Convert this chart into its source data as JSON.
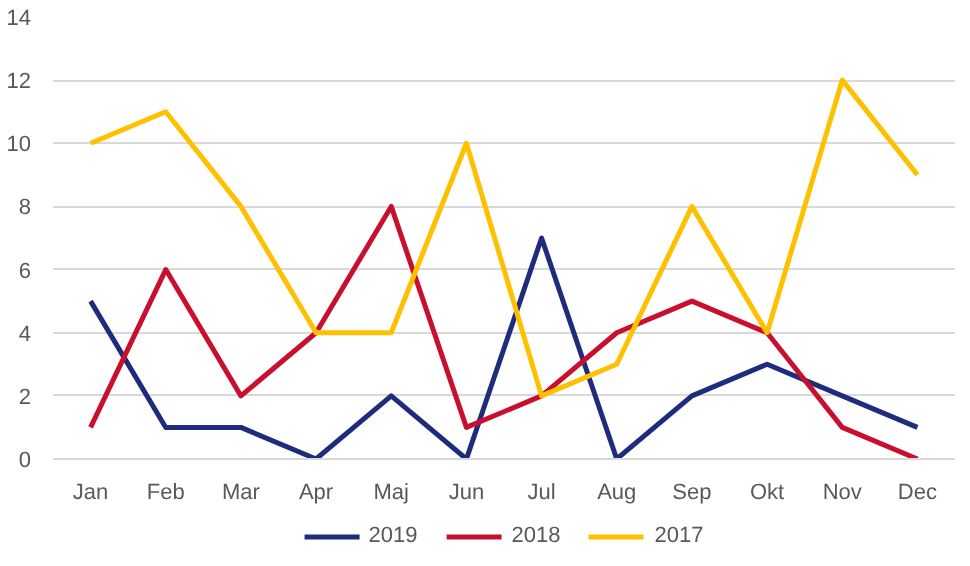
{
  "chart_data": {
    "type": "line",
    "categories": [
      "Jan",
      "Feb",
      "Mar",
      "Apr",
      "Maj",
      "Jun",
      "Jul",
      "Aug",
      "Sep",
      "Okt",
      "Nov",
      "Dec"
    ],
    "series": [
      {
        "name": "2019",
        "color": "#1f2b7b",
        "values": [
          5,
          1,
          1,
          0,
          2,
          0,
          7,
          0,
          2,
          3,
          2,
          1
        ]
      },
      {
        "name": "2018",
        "color": "#c8102e",
        "values": [
          1,
          6,
          2,
          4,
          8,
          1,
          2,
          4,
          5,
          4,
          1,
          0
        ]
      },
      {
        "name": "2017",
        "color": "#ffc000",
        "values": [
          10,
          11,
          8,
          4,
          4,
          10,
          2,
          3,
          8,
          4,
          12,
          9
        ]
      }
    ],
    "ylim": [
      0,
      14
    ],
    "yticks": [
      0,
      2,
      4,
      6,
      8,
      10,
      12,
      14
    ],
    "grid": "y",
    "legend": "bottom",
    "marker": "none",
    "line_style": "solid"
  }
}
